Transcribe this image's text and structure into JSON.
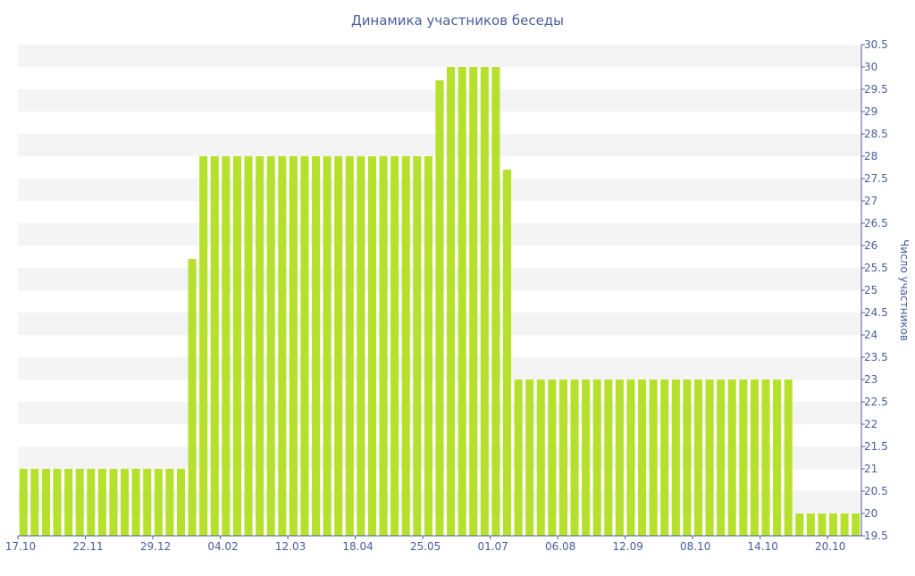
{
  "chart_data": {
    "type": "bar",
    "title": "Динамика участников беседы",
    "xlabel": "",
    "ylabel": "Число участников",
    "ylim": [
      19.5,
      30.5
    ],
    "y_ticks": [
      "19.5",
      "20",
      "20.5",
      "21",
      "21.5",
      "22",
      "22.5",
      "23",
      "23.5",
      "24",
      "24.5",
      "25",
      "25.5",
      "26",
      "26.5",
      "27",
      "27.5",
      "28",
      "28.5",
      "29",
      "29.5",
      "30",
      "30.5"
    ],
    "x_tick_labels": [
      "17.10",
      "22.11",
      "29.12",
      "04.02",
      "12.03",
      "18.04",
      "25.05",
      "01.07",
      "06.08",
      "12.09",
      "08.10",
      "14.10",
      "20.10"
    ],
    "x_tick_bar_index": [
      0,
      6,
      12,
      18,
      24,
      30,
      36,
      42,
      48,
      54,
      60,
      66,
      72
    ],
    "y_axis_position": "right",
    "grid": "horizontal alternating bands",
    "bar_color": "#b5e02c",
    "series": [
      {
        "values": [
          21,
          21,
          21,
          21,
          21,
          21,
          21,
          21,
          21,
          21,
          21,
          21,
          21,
          21,
          21,
          25.7,
          28,
          28,
          28,
          28,
          28,
          28,
          28,
          28,
          28,
          28,
          28,
          28,
          28,
          28,
          28,
          28,
          28,
          28,
          28,
          28,
          28,
          29.7,
          30,
          30,
          30,
          30,
          30,
          27.7,
          23,
          23,
          23,
          23,
          23,
          23,
          23,
          23,
          23,
          23,
          23,
          23,
          23,
          23,
          23,
          23,
          23,
          23,
          23,
          23,
          23,
          23,
          23,
          23,
          23,
          20,
          20,
          20,
          20,
          20,
          20
        ]
      }
    ]
  }
}
